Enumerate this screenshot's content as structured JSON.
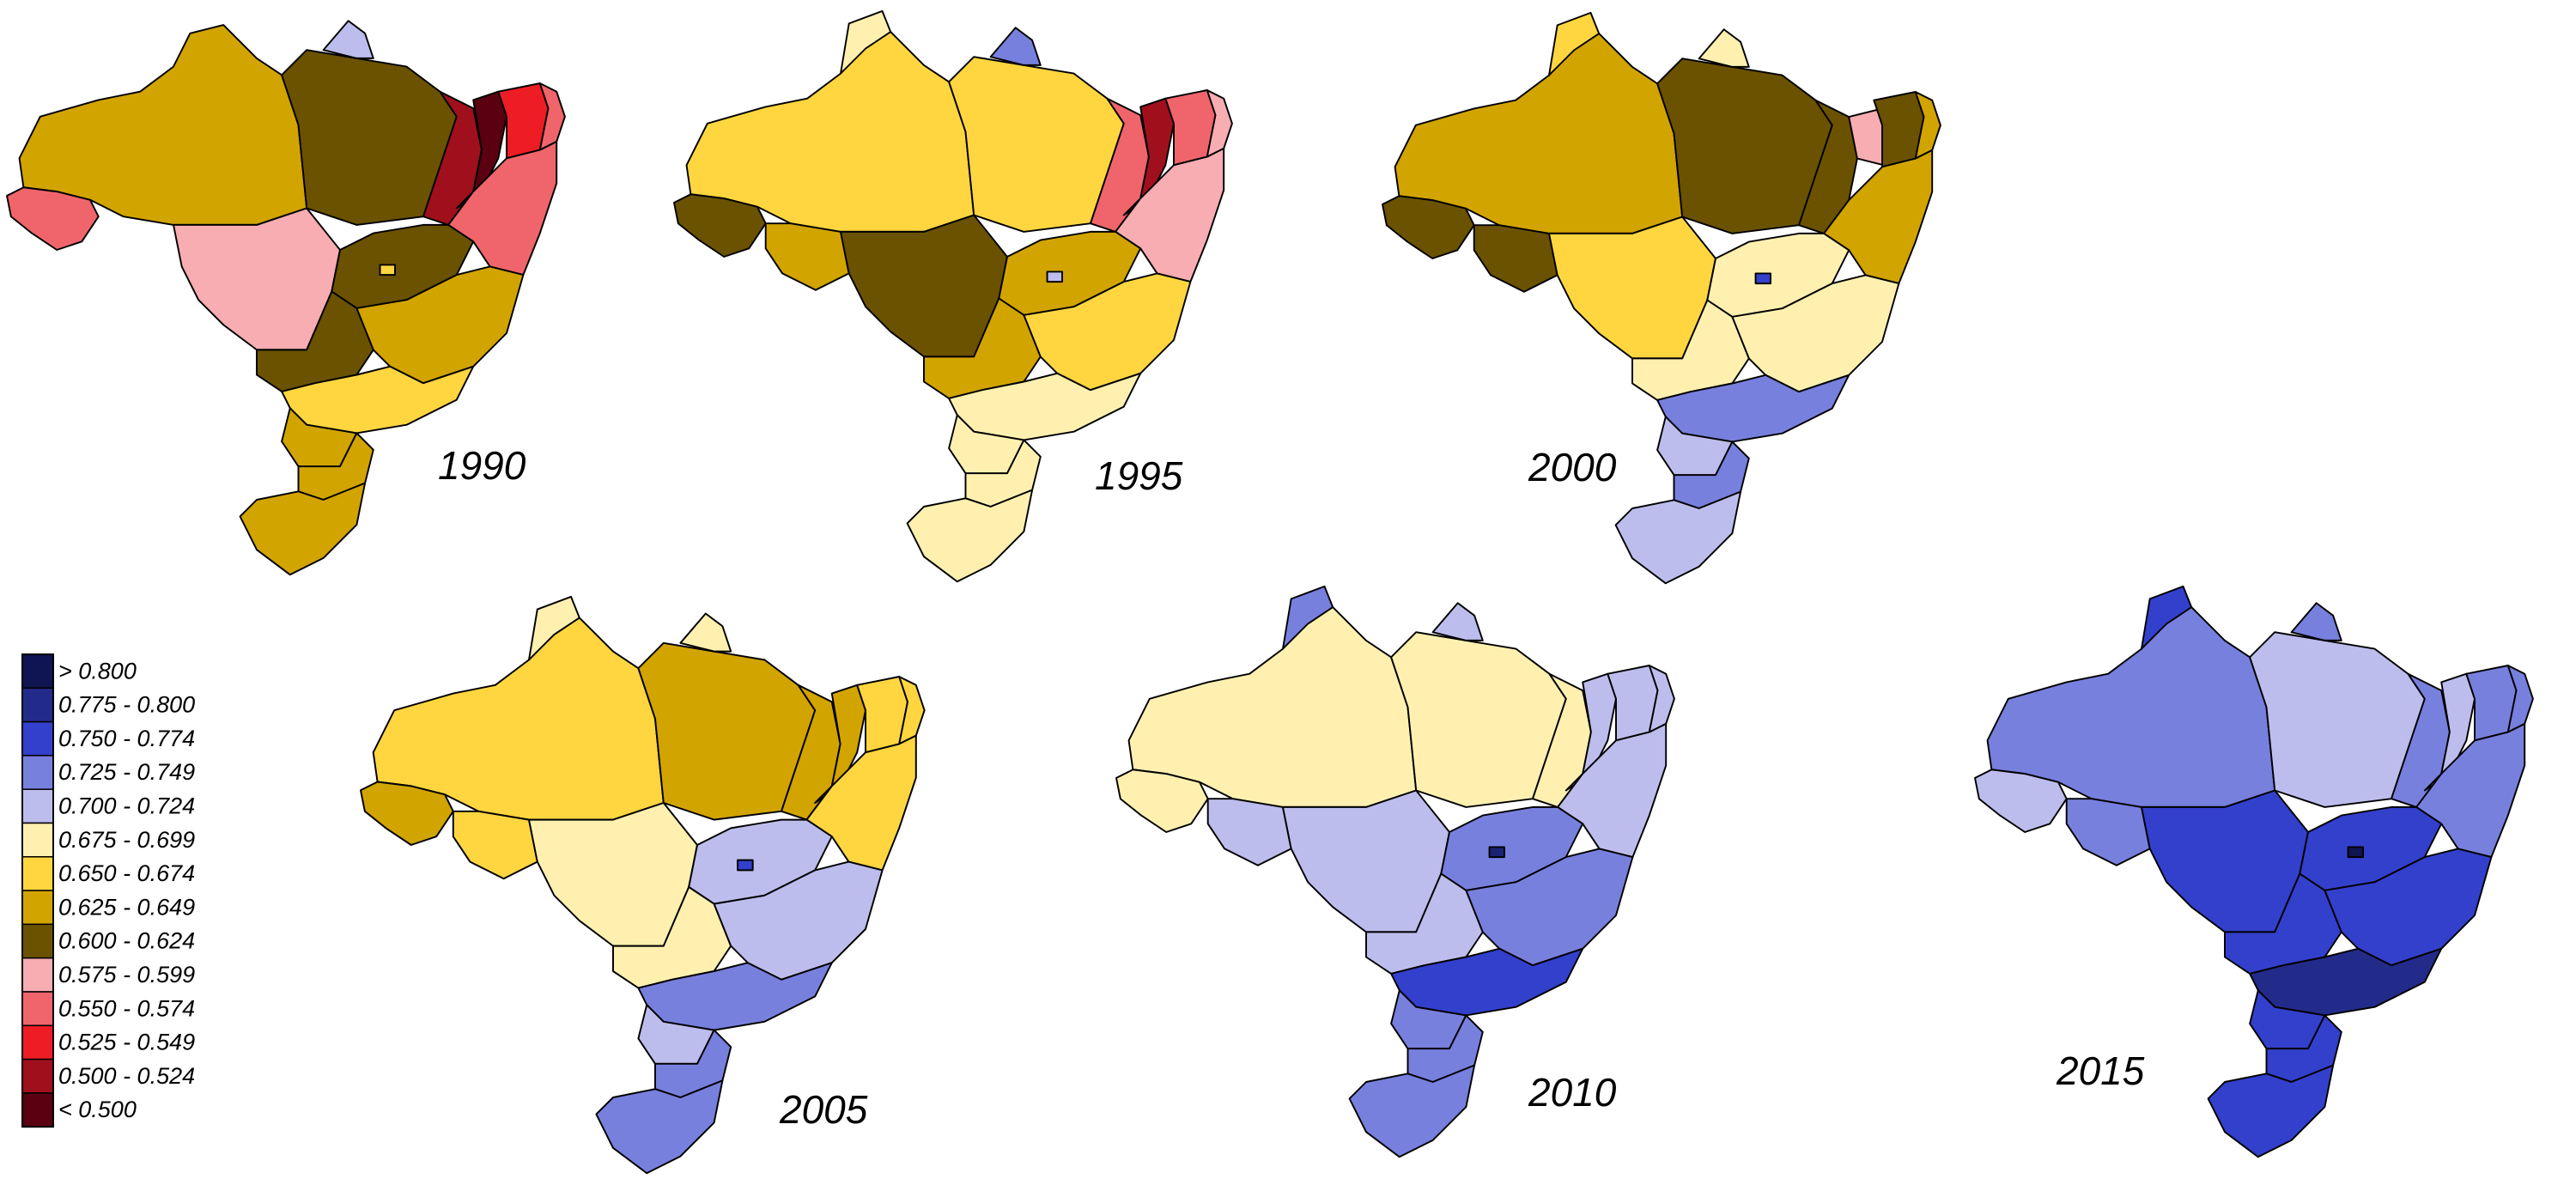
{
  "maps": [
    {
      "id": "map-1990",
      "label": "1990",
      "regions": [
        {
          "name": "north-west",
          "color": "#D2A400"
        },
        {
          "name": "north-central",
          "color": "#6B5200"
        },
        {
          "name": "north-coast",
          "color": "#BDBDED"
        },
        {
          "name": "west-tip",
          "color": "#F0656B"
        },
        {
          "name": "center-west",
          "color": "#F7ADB2"
        },
        {
          "name": "ne-inner",
          "color": "#A0101C"
        },
        {
          "name": "ne-core",
          "color": "#5A0010"
        },
        {
          "name": "ne-east",
          "color": "#EE1C24"
        },
        {
          "name": "ne-tip",
          "color": "#F0656B"
        },
        {
          "name": "ne-south",
          "color": "#F0656B"
        },
        {
          "name": "ne-west-strip",
          "color": "#F0656B"
        },
        {
          "name": "center",
          "color": "#6B5200"
        },
        {
          "name": "center-south",
          "color": "#6B5200"
        },
        {
          "name": "southeast",
          "color": "#D2A400"
        },
        {
          "name": "south-central",
          "color": "#FFD640"
        },
        {
          "name": "south-1",
          "color": "#D2A400"
        },
        {
          "name": "south-2",
          "color": "#D2A400"
        },
        {
          "name": "south-3",
          "color": "#D2A400"
        },
        {
          "name": "capital",
          "color": "#FFD640"
        }
      ]
    },
    {
      "id": "map-1995",
      "label": "1995",
      "regions": [
        {
          "name": "north-west",
          "color": "#FFD640"
        },
        {
          "name": "north-central",
          "color": "#FFD640"
        },
        {
          "name": "north-north",
          "color": "#FFF0B0"
        },
        {
          "name": "north-coast",
          "color": "#7880DE"
        },
        {
          "name": "west-tip",
          "color": "#6B5200"
        },
        {
          "name": "west-2",
          "color": "#D2A400"
        },
        {
          "name": "center-west",
          "color": "#6B5200"
        },
        {
          "name": "ne-inner",
          "color": "#F0656B"
        },
        {
          "name": "ne-core",
          "color": "#A0101C"
        },
        {
          "name": "ne-east",
          "color": "#F0656B"
        },
        {
          "name": "ne-tip",
          "color": "#F7ADB2"
        },
        {
          "name": "ne-south",
          "color": "#F7ADB2"
        },
        {
          "name": "center",
          "color": "#D2A400"
        },
        {
          "name": "center-south",
          "color": "#D2A400"
        },
        {
          "name": "southeast",
          "color": "#FFD640"
        },
        {
          "name": "sea-strip",
          "color": "#BDBDED"
        },
        {
          "name": "south-central",
          "color": "#FFF0B0"
        },
        {
          "name": "south-1",
          "color": "#FFF0B0"
        },
        {
          "name": "south-2",
          "color": "#FFF0B0"
        },
        {
          "name": "south-3",
          "color": "#FFF0B0"
        },
        {
          "name": "capital",
          "color": "#BDBDED"
        }
      ]
    },
    {
      "id": "map-2000",
      "label": "2000",
      "regions": [
        {
          "name": "north-west",
          "color": "#D2A400"
        },
        {
          "name": "north-north",
          "color": "#FFD640"
        },
        {
          "name": "north-central",
          "color": "#6B5200"
        },
        {
          "name": "north-coast",
          "color": "#FFF0B0"
        },
        {
          "name": "west-tip",
          "color": "#6B5200"
        },
        {
          "name": "west-2",
          "color": "#6B5200"
        },
        {
          "name": "center-west",
          "color": "#FFD640"
        },
        {
          "name": "ne-inner",
          "color": "#6B5200"
        },
        {
          "name": "ne-pink",
          "color": "#F7ADB2"
        },
        {
          "name": "ne-east",
          "color": "#6B5200"
        },
        {
          "name": "ne-tip",
          "color": "#D2A400"
        },
        {
          "name": "ne-south",
          "color": "#D2A400"
        },
        {
          "name": "center",
          "color": "#FFF0B0"
        },
        {
          "name": "center-south",
          "color": "#FFF0B0"
        },
        {
          "name": "southeast",
          "color": "#FFF0B0"
        },
        {
          "name": "south-central",
          "color": "#7880DE"
        },
        {
          "name": "south-1",
          "color": "#BDBDED"
        },
        {
          "name": "south-2",
          "color": "#7880DE"
        },
        {
          "name": "south-3",
          "color": "#BDBDED"
        },
        {
          "name": "capital",
          "color": "#3340CC"
        }
      ]
    },
    {
      "id": "map-2005",
      "label": "2005",
      "regions": [
        {
          "name": "north-west",
          "color": "#FFD640"
        },
        {
          "name": "north-north",
          "color": "#FFF0B0"
        },
        {
          "name": "north-central",
          "color": "#D2A400"
        },
        {
          "name": "north-coast",
          "color": "#FFF0B0"
        },
        {
          "name": "west-tip",
          "color": "#D2A400"
        },
        {
          "name": "west-2",
          "color": "#FFD640"
        },
        {
          "name": "center-west",
          "color": "#FFF0B0"
        },
        {
          "name": "ne-inner",
          "color": "#D2A400"
        },
        {
          "name": "ne-core",
          "color": "#D2A400"
        },
        {
          "name": "ne-east",
          "color": "#FFD640"
        },
        {
          "name": "ne-tip",
          "color": "#FFD640"
        },
        {
          "name": "ne-south",
          "color": "#FFD640"
        },
        {
          "name": "center",
          "color": "#BDBDED"
        },
        {
          "name": "center-south",
          "color": "#FFF0B0"
        },
        {
          "name": "southeast",
          "color": "#BDBDED"
        },
        {
          "name": "south-central",
          "color": "#7880DE"
        },
        {
          "name": "south-1",
          "color": "#BDBDED"
        },
        {
          "name": "south-2",
          "color": "#7880DE"
        },
        {
          "name": "south-3",
          "color": "#7880DE"
        },
        {
          "name": "capital",
          "color": "#3340CC"
        }
      ]
    },
    {
      "id": "map-2010",
      "label": "2010",
      "regions": [
        {
          "name": "north-west",
          "color": "#FFF0B0"
        },
        {
          "name": "north-north",
          "color": "#7880DE"
        },
        {
          "name": "north-central",
          "color": "#FFF0B0"
        },
        {
          "name": "north-coast",
          "color": "#BDBDED"
        },
        {
          "name": "west-tip",
          "color": "#FFF0B0"
        },
        {
          "name": "west-2",
          "color": "#BDBDED"
        },
        {
          "name": "center-west",
          "color": "#BDBDED"
        },
        {
          "name": "ne-inner",
          "color": "#FFF0B0"
        },
        {
          "name": "ne-core",
          "color": "#BDBDED"
        },
        {
          "name": "ne-east",
          "color": "#BDBDED"
        },
        {
          "name": "ne-tip",
          "color": "#BDBDED"
        },
        {
          "name": "ne-south",
          "color": "#BDBDED"
        },
        {
          "name": "center",
          "color": "#7880DE"
        },
        {
          "name": "center-south",
          "color": "#BDBDED"
        },
        {
          "name": "southeast",
          "color": "#7880DE"
        },
        {
          "name": "south-central",
          "color": "#3340CC"
        },
        {
          "name": "south-1",
          "color": "#7880DE"
        },
        {
          "name": "south-2",
          "color": "#7880DE"
        },
        {
          "name": "south-3",
          "color": "#7880DE"
        },
        {
          "name": "capital",
          "color": "#1B2370"
        }
      ]
    },
    {
      "id": "map-2015",
      "label": "2015",
      "regions": [
        {
          "name": "north-west",
          "color": "#7880DE"
        },
        {
          "name": "north-north",
          "color": "#3340CC"
        },
        {
          "name": "north-central",
          "color": "#BDBDED"
        },
        {
          "name": "north-coast",
          "color": "#7880DE"
        },
        {
          "name": "west-tip",
          "color": "#BDBDED"
        },
        {
          "name": "west-2",
          "color": "#7880DE"
        },
        {
          "name": "center-west",
          "color": "#3340CC"
        },
        {
          "name": "ne-inner",
          "color": "#7880DE"
        },
        {
          "name": "ne-core",
          "color": "#BDBDED"
        },
        {
          "name": "ne-east",
          "color": "#7880DE"
        },
        {
          "name": "ne-tip",
          "color": "#7880DE"
        },
        {
          "name": "ne-south",
          "color": "#7880DE"
        },
        {
          "name": "center",
          "color": "#3340CC"
        },
        {
          "name": "center-south",
          "color": "#3340CC"
        },
        {
          "name": "southeast",
          "color": "#3340CC"
        },
        {
          "name": "south-central",
          "color": "#232B8A"
        },
        {
          "name": "south-1",
          "color": "#3340CC"
        },
        {
          "name": "south-2",
          "color": "#3340CC"
        },
        {
          "name": "south-3",
          "color": "#3340CC"
        },
        {
          "name": "capital",
          "color": "#0E1550"
        }
      ]
    }
  ],
  "legend": [
    {
      "label": "> 0.800",
      "color": "#0E1550"
    },
    {
      "label": "0.775 - 0.800",
      "color": "#232B8A"
    },
    {
      "label": "0.750 - 0.774",
      "color": "#3340CC"
    },
    {
      "label": "0.725 - 0.749",
      "color": "#7880DE"
    },
    {
      "label": "0.700 - 0.724",
      "color": "#BDBDED"
    },
    {
      "label": "0.675 - 0.699",
      "color": "#FFF0B0"
    },
    {
      "label": "0.650 - 0.674",
      "color": "#FFD640"
    },
    {
      "label": "0.625 - 0.649",
      "color": "#D2A400"
    },
    {
      "label": "0.600 - 0.624",
      "color": "#6B5200"
    },
    {
      "label": "0.575 - 0.599",
      "color": "#F7ADB2"
    },
    {
      "label": "0.550 - 0.574",
      "color": "#F0656B"
    },
    {
      "label": "0.525 - 0.549",
      "color": "#EE1C24"
    },
    {
      "label": "0.500 - 0.524",
      "color": "#A0101C"
    },
    {
      "label": "< 0.500",
      "color": "#5A0010"
    }
  ]
}
